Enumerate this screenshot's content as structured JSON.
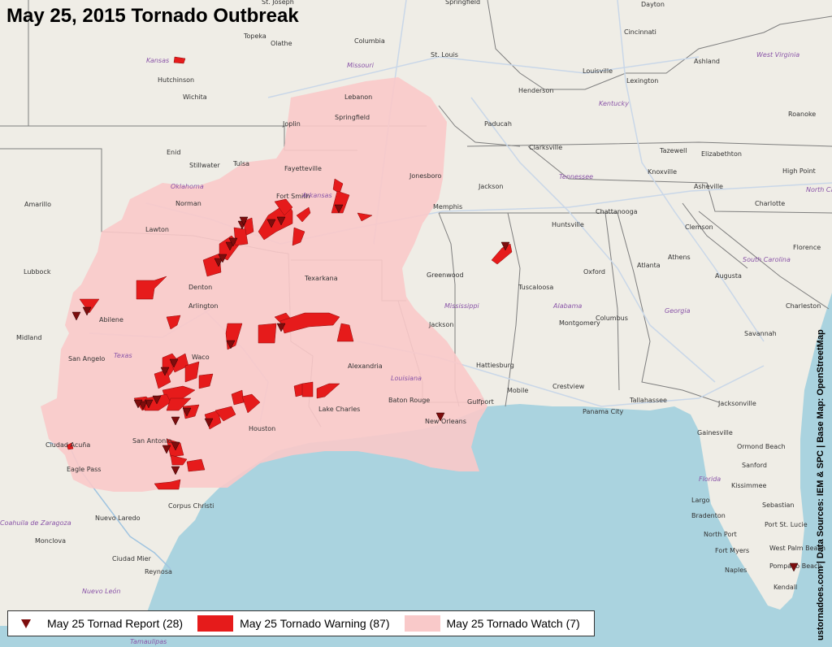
{
  "title": "May 25, 2015 Tornado Outbreak",
  "credit": "ustornadoes.com | Data Sources: IEM & SPC | Base Map: OpenStreetMap",
  "colors": {
    "land": "#efede6",
    "water": "#aad3df",
    "watch": "#f9c9c9",
    "warning": "#e61b1b",
    "report": "#7d0d0d",
    "state_label": "#8a55a8"
  },
  "legend": {
    "report": "May 25 Tornad Report (28)",
    "warning": "May 25 Tornado Warning (87)",
    "watch": "May 25 Tornado Watch (7)"
  },
  "cities": [
    "St. Joseph",
    "Springfield",
    "Dayton",
    "Topeka",
    "Olathe",
    "Columbia",
    "Cincinnati",
    "St. Louis",
    "Ashland",
    "Hutchinson",
    "Louisville",
    "Lexington",
    "Wichita",
    "Lebanon",
    "Henderson",
    "Roanoke",
    "Springfield",
    "Joplin",
    "Paducah",
    "Enid",
    "Clarksville",
    "Tazewell",
    "Elizabethton",
    "Stillwater",
    "Tulsa",
    "Fayetteville",
    "Knoxville",
    "High Point",
    "Jonesboro",
    "Jackson",
    "Asheville",
    "Amarillo",
    "Norman",
    "Fort Smith",
    "Charlotte",
    "Memphis",
    "Chattanooga",
    "Huntsville",
    "Lawton",
    "Clemson",
    "Greenwood",
    "Oxford",
    "Athens",
    "Florence",
    "Lubbock",
    "Denton",
    "Texarkana",
    "Tuscaloosa",
    "Atlanta",
    "Augusta",
    "Arlington",
    "Abilene",
    "Columbus",
    "Montgomery",
    "Charleston",
    "Midland",
    "Jackson",
    "Savannah",
    "Waco",
    "San Angelo",
    "Alexandria",
    "Hattiesburg",
    "Mobile",
    "Crestview",
    "Baton Rouge",
    "Tallahassee",
    "Lake Charles",
    "Gulfport",
    "Jacksonville",
    "Panama City",
    "Houston",
    "New Orleans",
    "Ciudad Acuña",
    "San Antonio",
    "Eagle Pass",
    "Gainesville",
    "Ormond Beach",
    "Corpus Christi",
    "Sanford",
    "Kissimmee",
    "Nuevo Laredo",
    "Largo",
    "Bradenton",
    "Sebastian",
    "Port St. Lucie",
    "Monclova",
    "North Port",
    "Fort Myers",
    "West Palm Beach",
    "Ciudad Mier",
    "Reynosa",
    "Naples",
    "Pompano Beach",
    "Kendall"
  ],
  "states": [
    "Kansas",
    "Missouri",
    "West Virginia",
    "Kentucky",
    "Tennessee",
    "North Carolina",
    "Oklahoma",
    "Arkansas",
    "South Carolina",
    "Mississippi",
    "Alabama",
    "Georgia",
    "Texas",
    "Louisiana",
    "Florida",
    "Coahuila de Zaragoza",
    "Nuevo León",
    "Tamaulipas"
  ]
}
